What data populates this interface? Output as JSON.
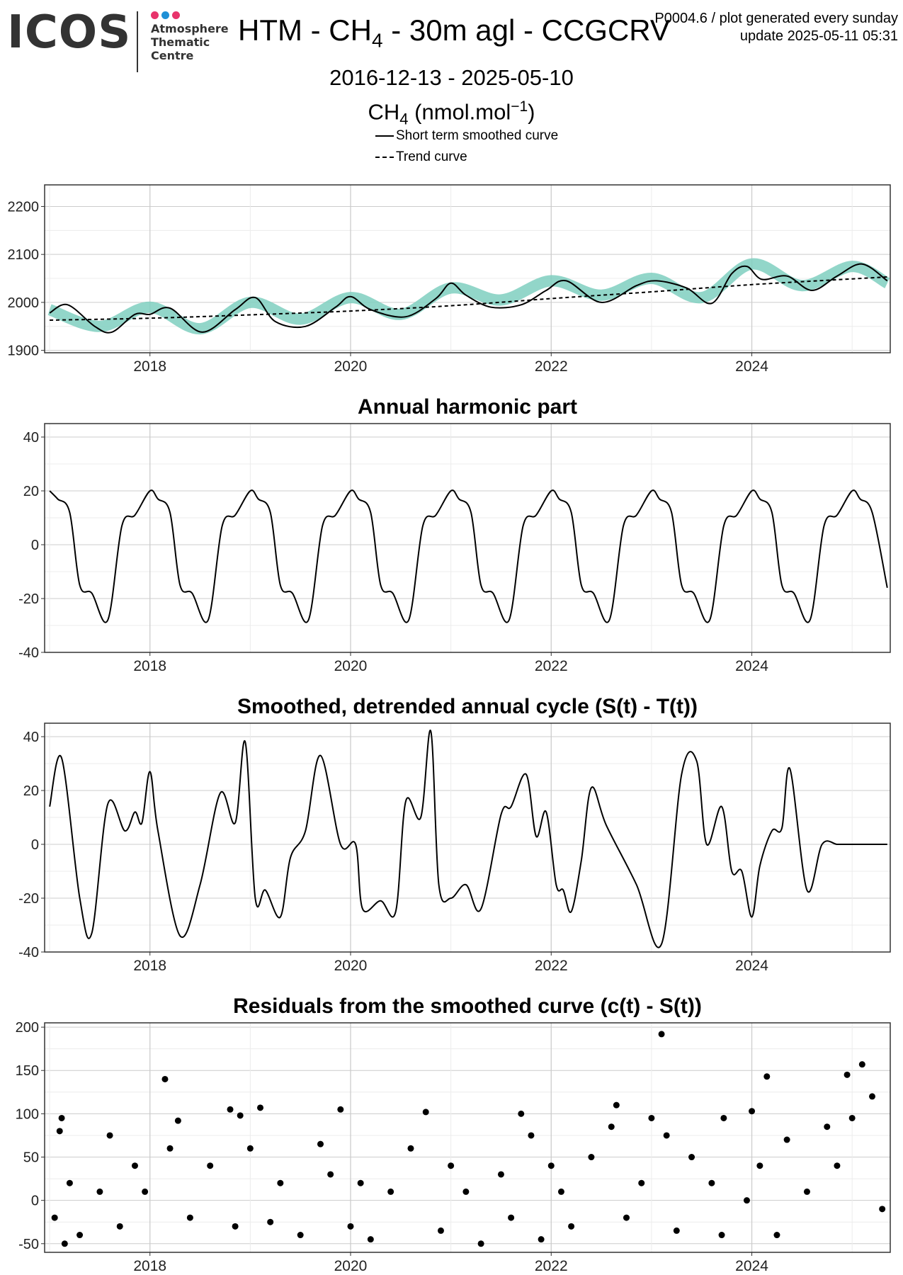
{
  "header": {
    "logo": {
      "word": "ICOS",
      "sub_lines": [
        "Atmosphere",
        "Thematic",
        "Centre"
      ],
      "dot_colors": [
        "#e8336b",
        "#1e90d6",
        "#e8336b"
      ]
    },
    "title_main": "HTM - CH",
    "title_sub": "4",
    "title_rest": " - 30m agl - CCGCRV",
    "meta_line1": "P0004.6 / plot generated every sunday",
    "meta_line2": "update  2025-05-11 05:31",
    "date_range": "2016-12-13 - 2025-05-10",
    "unit_main": "CH",
    "unit_sub": "4",
    "unit_rest": " (nmol.mol",
    "unit_sup": "−1",
    "unit_close": ")",
    "legend": [
      {
        "label": "Short term smoothed curve",
        "style": "solid"
      },
      {
        "label": "Trend curve",
        "style": "dashed"
      }
    ]
  },
  "colors": {
    "raw": "#7fcfbf",
    "curve": "#000000",
    "grid_major": "#cccccc",
    "grid_minor": "#ececec"
  },
  "chart_data": [
    {
      "type": "line",
      "title": "",
      "xlim": [
        2016.95,
        2025.38
      ],
      "x_ticks": [
        2018,
        2020,
        2022,
        2024
      ],
      "ylim": [
        1895,
        2245
      ],
      "y_ticks": [
        1900,
        2000,
        2100,
        2200
      ],
      "series": [
        {
          "name": "",
          "style": "raw",
          "x": [
            2017.0,
            2017.5,
            2018.0,
            2018.5,
            2019.0,
            2019.5,
            2020.0,
            2020.5,
            2021.0,
            2021.5,
            2022.0,
            2022.5,
            2023.0,
            2023.5,
            2024.0,
            2024.5,
            2025.0,
            2025.35
          ],
          "y": [
            1985,
            1950,
            1990,
            1945,
            2000,
            1965,
            2010,
            1975,
            2030,
            2005,
            2045,
            2015,
            2050,
            2010,
            2080,
            2035,
            2075,
            2040
          ]
        },
        {
          "name": "Short term smoothed curve",
          "style": "solid",
          "x": [
            2017.0,
            2017.18,
            2017.45,
            2017.62,
            2017.85,
            2018.0,
            2018.2,
            2018.52,
            2018.85,
            2019.05,
            2019.25,
            2019.55,
            2019.85,
            2020.0,
            2020.2,
            2020.55,
            2020.85,
            2021.0,
            2021.15,
            2021.4,
            2021.7,
            2021.95,
            2022.15,
            2022.5,
            2022.85,
            2023.05,
            2023.35,
            2023.6,
            2023.8,
            2023.95,
            2024.1,
            2024.35,
            2024.6,
            2024.85,
            2025.1,
            2025.35
          ],
          "y": [
            1978,
            1995,
            1950,
            1938,
            1975,
            1975,
            1988,
            1938,
            1985,
            2010,
            1960,
            1950,
            1990,
            2012,
            1985,
            1970,
            2008,
            2040,
            2015,
            1990,
            1995,
            2025,
            2045,
            2000,
            2035,
            2045,
            2030,
            1998,
            2060,
            2075,
            2048,
            2055,
            2025,
            2055,
            2080,
            2045
          ]
        },
        {
          "name": "Trend curve",
          "style": "dashed",
          "x": [
            2017.0,
            2018.0,
            2019.0,
            2020.0,
            2021.0,
            2022.0,
            2023.0,
            2024.0,
            2025.0,
            2025.35
          ],
          "y": [
            1963,
            1967,
            1974,
            1982,
            1993,
            2008,
            2022,
            2037,
            2049,
            2053
          ]
        }
      ]
    },
    {
      "type": "line",
      "title": "Annual harmonic part",
      "xlim": [
        2016.95,
        2025.38
      ],
      "x_ticks": [
        2018,
        2020,
        2022,
        2024
      ],
      "ylim": [
        -40,
        45
      ],
      "y_ticks": [
        -40,
        -20,
        0,
        20,
        40
      ],
      "series": [
        {
          "name": "",
          "style": "solid",
          "x": [
            2017.0,
            2017.08,
            2017.2,
            2017.3,
            2017.42,
            2017.58,
            2017.72,
            2017.85,
            2018.0,
            2018.08,
            2018.2,
            2018.3,
            2018.42,
            2018.58,
            2018.72,
            2018.85,
            2019.0,
            2019.08,
            2019.2,
            2019.3,
            2019.42,
            2019.58,
            2019.72,
            2019.85,
            2020.0,
            2020.08,
            2020.2,
            2020.3,
            2020.42,
            2020.58,
            2020.72,
            2020.85,
            2021.0,
            2021.08,
            2021.2,
            2021.3,
            2021.42,
            2021.58,
            2021.72,
            2021.85,
            2022.0,
            2022.08,
            2022.2,
            2022.3,
            2022.42,
            2022.58,
            2022.72,
            2022.85,
            2023.0,
            2023.08,
            2023.2,
            2023.3,
            2023.42,
            2023.58,
            2023.72,
            2023.85,
            2024.0,
            2024.08,
            2024.2,
            2024.3,
            2024.42,
            2024.58,
            2024.72,
            2024.85,
            2025.0,
            2025.08,
            2025.2,
            2025.35
          ],
          "y": [
            20,
            17,
            12,
            -15,
            -18,
            -28,
            7,
            11,
            20,
            17,
            12,
            -15,
            -18,
            -28,
            7,
            11,
            20,
            17,
            12,
            -15,
            -18,
            -28,
            7,
            11,
            20,
            17,
            12,
            -15,
            -18,
            -28,
            7,
            11,
            20,
            17,
            12,
            -15,
            -18,
            -28,
            7,
            11,
            20,
            17,
            12,
            -15,
            -18,
            -28,
            7,
            11,
            20,
            17,
            12,
            -15,
            -18,
            -28,
            7,
            11,
            20,
            17,
            12,
            -15,
            -18,
            -28,
            7,
            11,
            20,
            17,
            12,
            -16
          ]
        }
      ]
    },
    {
      "type": "line",
      "title": "Smoothed, detrended annual cycle (S(t) - T(t))",
      "xlim": [
        2016.95,
        2025.38
      ],
      "x_ticks": [
        2018,
        2020,
        2022,
        2024
      ],
      "ylim": [
        -40,
        45
      ],
      "y_ticks": [
        -40,
        -20,
        0,
        20,
        40
      ],
      "series": [
        {
          "name": "",
          "style": "solid",
          "x": [
            2017.0,
            2017.12,
            2017.3,
            2017.42,
            2017.58,
            2017.75,
            2017.85,
            2017.92,
            2018.0,
            2018.08,
            2018.3,
            2018.5,
            2018.7,
            2018.85,
            2018.95,
            2019.05,
            2019.15,
            2019.3,
            2019.4,
            2019.55,
            2019.7,
            2019.9,
            2020.05,
            2020.12,
            2020.3,
            2020.45,
            2020.55,
            2020.7,
            2020.8,
            2020.88,
            2021.0,
            2021.15,
            2021.3,
            2021.5,
            2021.6,
            2021.75,
            2021.85,
            2021.95,
            2022.05,
            2022.12,
            2022.2,
            2022.3,
            2022.4,
            2022.55,
            2022.85,
            2023.1,
            2023.3,
            2023.45,
            2023.55,
            2023.7,
            2023.8,
            2023.9,
            2024.0,
            2024.08,
            2024.2,
            2024.3,
            2024.38,
            2024.55,
            2024.7,
            2024.85,
            2024.95,
            2025.05,
            2025.15,
            2025.35
          ],
          "y": [
            14,
            32,
            -20,
            -33,
            15,
            5,
            12,
            8,
            27,
            5,
            -34,
            -15,
            19,
            8,
            38,
            -20,
            -17,
            -27,
            -5,
            5,
            33,
            0,
            0,
            -24,
            -21,
            -25,
            16,
            10,
            42,
            -15,
            -20,
            -15,
            -24,
            11,
            14,
            26,
            3,
            12,
            -15,
            -17,
            -25,
            -6,
            21,
            7,
            -15,
            -37,
            26,
            31,
            0,
            14,
            -10,
            -10,
            -27,
            -8,
            5,
            6,
            28,
            -17,
            0,
            0,
            0,
            0,
            0,
            0
          ]
        }
      ]
    },
    {
      "type": "scatter",
      "title": "Residuals from the smoothed curve (c(t) - S(t))",
      "xlim": [
        2016.95,
        2025.38
      ],
      "x_ticks": [
        2018,
        2020,
        2022,
        2024
      ],
      "ylim": [
        -60,
        205
      ],
      "y_ticks": [
        -50,
        0,
        50,
        100,
        150,
        200
      ],
      "series": [
        {
          "name": "",
          "style": "points",
          "x": [
            2017.05,
            2017.1,
            2017.12,
            2017.15,
            2017.2,
            2017.3,
            2017.5,
            2017.6,
            2017.7,
            2017.85,
            2017.95,
            2018.15,
            2018.2,
            2018.28,
            2018.4,
            2018.6,
            2018.8,
            2018.85,
            2018.9,
            2019.0,
            2019.1,
            2019.2,
            2019.3,
            2019.5,
            2019.7,
            2019.8,
            2019.9,
            2020.0,
            2020.1,
            2020.2,
            2020.4,
            2020.6,
            2020.75,
            2020.9,
            2021.0,
            2021.15,
            2021.3,
            2021.5,
            2021.6,
            2021.7,
            2021.8,
            2021.9,
            2022.0,
            2022.1,
            2022.2,
            2022.4,
            2022.6,
            2022.65,
            2022.75,
            2022.9,
            2023.0,
            2023.1,
            2023.15,
            2023.25,
            2023.4,
            2023.6,
            2023.7,
            2023.72,
            2023.95,
            2024.0,
            2024.08,
            2024.15,
            2024.25,
            2024.35,
            2024.55,
            2024.75,
            2024.85,
            2024.95,
            2025.0,
            2025.1,
            2025.2,
            2025.3
          ],
          "y": [
            -20,
            80,
            95,
            -50,
            20,
            -40,
            10,
            75,
            -30,
            40,
            10,
            140,
            60,
            92,
            -20,
            40,
            105,
            -30,
            98,
            60,
            107,
            -25,
            20,
            -40,
            65,
            30,
            105,
            -30,
            20,
            -45,
            10,
            60,
            102,
            -35,
            40,
            10,
            -50,
            30,
            -20,
            100,
            75,
            -45,
            40,
            10,
            -30,
            50,
            85,
            110,
            -20,
            20,
            95,
            192,
            75,
            -35,
            50,
            20,
            -40,
            95,
            0,
            103,
            40,
            143,
            -40,
            70,
            10,
            85,
            40,
            145,
            95,
            157,
            120,
            -10
          ]
        }
      ]
    }
  ]
}
